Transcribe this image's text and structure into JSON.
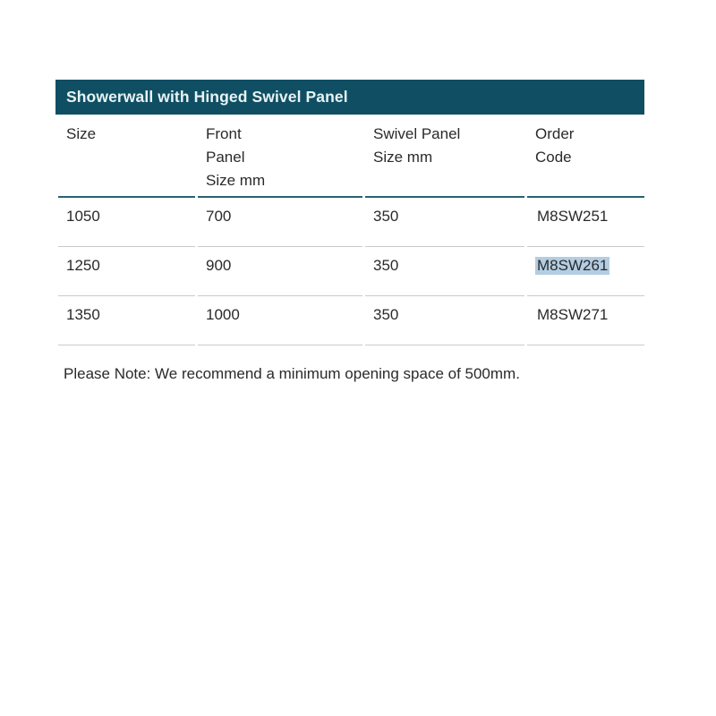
{
  "page": {
    "background": "#ffffff"
  },
  "colors": {
    "header_bar_bg": "#104f63",
    "header_bar_text": "#e8f3f5",
    "divider_dark": "#2c6171",
    "divider_light": "#c8cbcb",
    "body_text": "#2a2a2c",
    "selection_highlight": "#b3cde2"
  },
  "table": {
    "title": "Showerwall with Hinged Swivel Panel",
    "columns": [
      {
        "label": "Size"
      },
      {
        "label": "Front\nPanel\nSize mm"
      },
      {
        "label": "Swivel Panel\nSize mm"
      },
      {
        "label": "Order\nCode"
      }
    ],
    "rows": [
      {
        "size": "1050",
        "front_panel_size_mm": "700",
        "swivel_panel_size_mm": "350",
        "order_code": "M8SW251",
        "order_code_selected": false
      },
      {
        "size": "1250",
        "front_panel_size_mm": "900",
        "swivel_panel_size_mm": "350",
        "order_code": "M8SW261",
        "order_code_selected": true
      },
      {
        "size": "1350",
        "front_panel_size_mm": "1000",
        "swivel_panel_size_mm": "350",
        "order_code": "M8SW271",
        "order_code_selected": false
      }
    ]
  },
  "note": "Please Note: We recommend a minimum opening space of 500mm."
}
